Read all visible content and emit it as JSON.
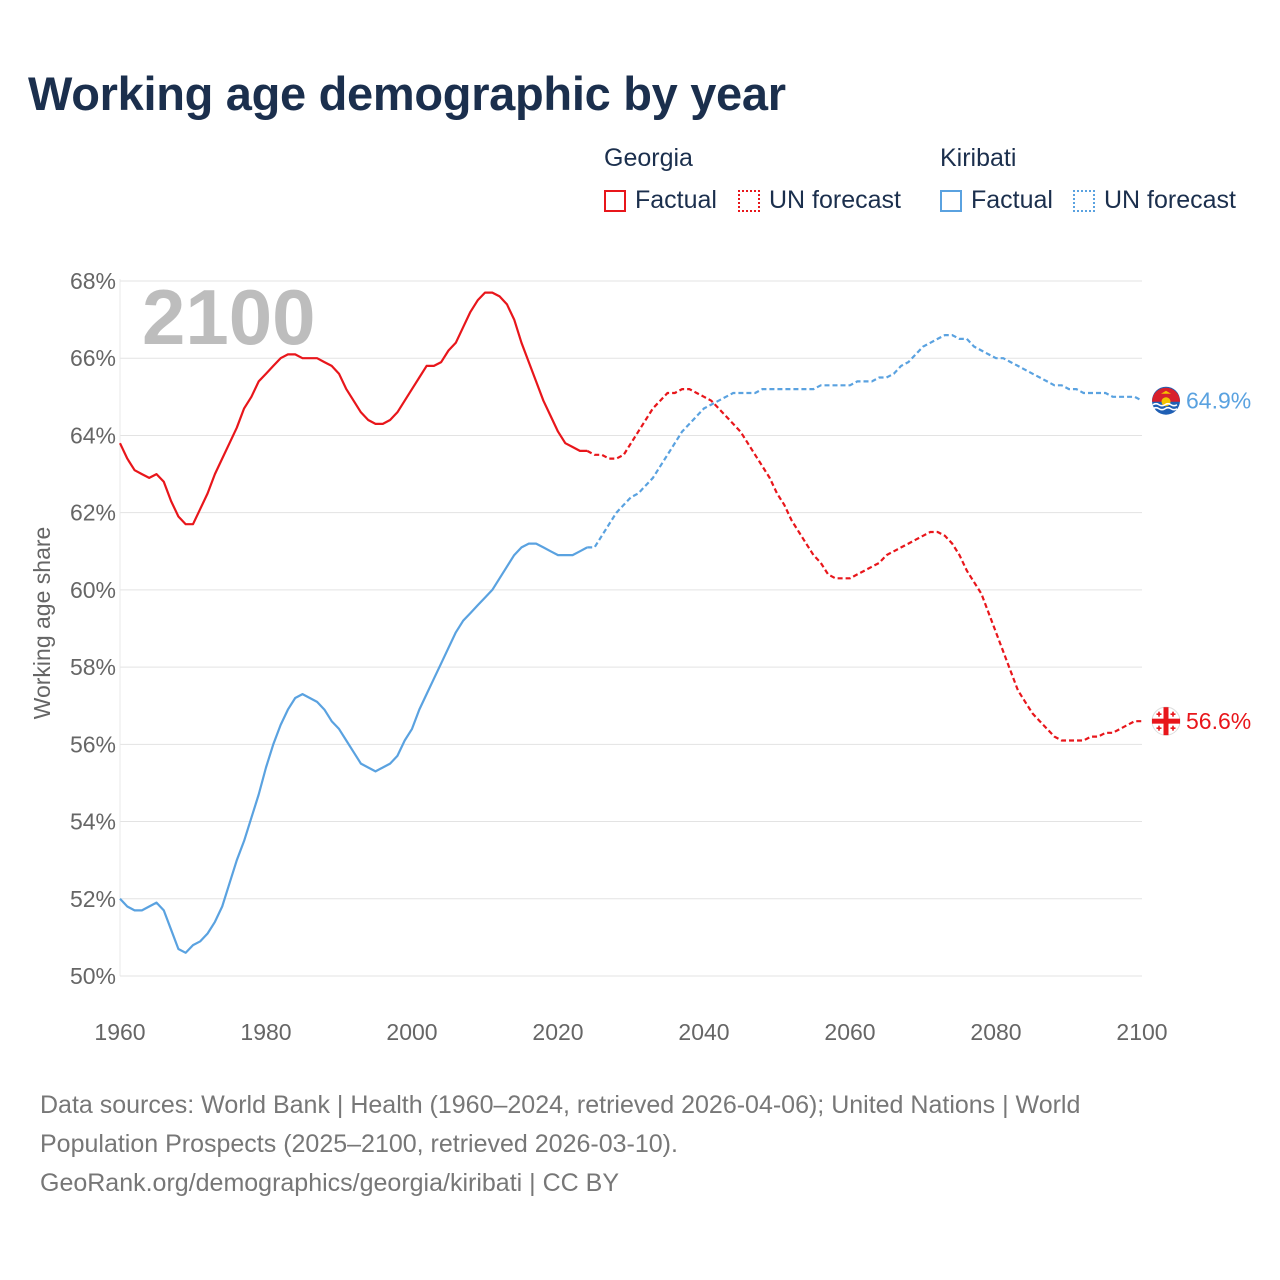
{
  "title": "Working age demographic by year",
  "legend": {
    "groups": [
      {
        "name": "Georgia",
        "color": "#e8161b",
        "factual": "Factual",
        "forecast": "UN forecast"
      },
      {
        "name": "Kiribati",
        "color": "#5aa2e0",
        "factual": "Factual",
        "forecast": "UN forecast"
      }
    ]
  },
  "footer": {
    "sources": "Data sources: World Bank | Health (1960–2024, retrieved 2026-04-06); United Nations | World Population Prospects (2025–2100, retrieved 2026-03-10).",
    "credit": "GeoRank.org/demographics/georgia/kiribati | CC BY"
  },
  "chart_data": {
    "type": "line",
    "title": "Working age demographic by year",
    "xlabel": "",
    "ylabel": "Working age share",
    "xlim": [
      1960,
      2100
    ],
    "ylim": [
      50,
      68
    ],
    "x_ticks": [
      1960,
      1980,
      2000,
      2020,
      2040,
      2060,
      2080,
      2100
    ],
    "y_ticks": [
      50,
      52,
      54,
      56,
      58,
      60,
      62,
      64,
      66,
      68
    ],
    "y_tick_labels": [
      "50%",
      "52%",
      "54%",
      "56%",
      "58%",
      "60%",
      "62%",
      "64%",
      "66%",
      "68%"
    ],
    "x_tick_labels": [
      "1960",
      "1980",
      "2000",
      "2020",
      "2040",
      "2060",
      "2080",
      "2100"
    ],
    "current_year": "2100",
    "factual_end_year": 2024,
    "series": [
      {
        "name": "Georgia",
        "color": "#e8161b",
        "end_label": "56.6%",
        "points": [
          [
            1960,
            63.8
          ],
          [
            1961,
            63.4
          ],
          [
            1962,
            63.1
          ],
          [
            1963,
            63.0
          ],
          [
            1964,
            62.9
          ],
          [
            1965,
            63.0
          ],
          [
            1966,
            62.8
          ],
          [
            1967,
            62.3
          ],
          [
            1968,
            61.9
          ],
          [
            1969,
            61.7
          ],
          [
            1970,
            61.7
          ],
          [
            1971,
            62.1
          ],
          [
            1972,
            62.5
          ],
          [
            1973,
            63.0
          ],
          [
            1974,
            63.4
          ],
          [
            1975,
            63.8
          ],
          [
            1976,
            64.2
          ],
          [
            1977,
            64.7
          ],
          [
            1978,
            65.0
          ],
          [
            1979,
            65.4
          ],
          [
            1980,
            65.6
          ],
          [
            1981,
            65.8
          ],
          [
            1982,
            66.0
          ],
          [
            1983,
            66.1
          ],
          [
            1984,
            66.1
          ],
          [
            1985,
            66.0
          ],
          [
            1986,
            66.0
          ],
          [
            1987,
            66.0
          ],
          [
            1988,
            65.9
          ],
          [
            1989,
            65.8
          ],
          [
            1990,
            65.6
          ],
          [
            1991,
            65.2
          ],
          [
            1992,
            64.9
          ],
          [
            1993,
            64.6
          ],
          [
            1994,
            64.4
          ],
          [
            1995,
            64.3
          ],
          [
            1996,
            64.3
          ],
          [
            1997,
            64.4
          ],
          [
            1998,
            64.6
          ],
          [
            1999,
            64.9
          ],
          [
            2000,
            65.2
          ],
          [
            2001,
            65.5
          ],
          [
            2002,
            65.8
          ],
          [
            2003,
            65.8
          ],
          [
            2004,
            65.9
          ],
          [
            2005,
            66.2
          ],
          [
            2006,
            66.4
          ],
          [
            2007,
            66.8
          ],
          [
            2008,
            67.2
          ],
          [
            2009,
            67.5
          ],
          [
            2010,
            67.7
          ],
          [
            2011,
            67.7
          ],
          [
            2012,
            67.6
          ],
          [
            2013,
            67.4
          ],
          [
            2014,
            67.0
          ],
          [
            2015,
            66.4
          ],
          [
            2016,
            65.9
          ],
          [
            2017,
            65.4
          ],
          [
            2018,
            64.9
          ],
          [
            2019,
            64.5
          ],
          [
            2020,
            64.1
          ],
          [
            2021,
            63.8
          ],
          [
            2022,
            63.7
          ],
          [
            2023,
            63.6
          ],
          [
            2024,
            63.6
          ],
          [
            2025,
            63.5
          ],
          [
            2026,
            63.5
          ],
          [
            2027,
            63.4
          ],
          [
            2028,
            63.4
          ],
          [
            2029,
            63.5
          ],
          [
            2030,
            63.8
          ],
          [
            2031,
            64.1
          ],
          [
            2032,
            64.4
          ],
          [
            2033,
            64.7
          ],
          [
            2034,
            64.9
          ],
          [
            2035,
            65.1
          ],
          [
            2036,
            65.1
          ],
          [
            2037,
            65.2
          ],
          [
            2038,
            65.2
          ],
          [
            2039,
            65.1
          ],
          [
            2040,
            65.0
          ],
          [
            2041,
            64.9
          ],
          [
            2042,
            64.7
          ],
          [
            2043,
            64.5
          ],
          [
            2044,
            64.3
          ],
          [
            2045,
            64.1
          ],
          [
            2046,
            63.8
          ],
          [
            2047,
            63.5
          ],
          [
            2048,
            63.2
          ],
          [
            2049,
            62.9
          ],
          [
            2050,
            62.5
          ],
          [
            2051,
            62.2
          ],
          [
            2052,
            61.8
          ],
          [
            2053,
            61.5
          ],
          [
            2054,
            61.2
          ],
          [
            2055,
            60.9
          ],
          [
            2056,
            60.7
          ],
          [
            2057,
            60.4
          ],
          [
            2058,
            60.3
          ],
          [
            2059,
            60.3
          ],
          [
            2060,
            60.3
          ],
          [
            2061,
            60.4
          ],
          [
            2062,
            60.5
          ],
          [
            2063,
            60.6
          ],
          [
            2064,
            60.7
          ],
          [
            2065,
            60.9
          ],
          [
            2066,
            61.0
          ],
          [
            2067,
            61.1
          ],
          [
            2068,
            61.2
          ],
          [
            2069,
            61.3
          ],
          [
            2070,
            61.4
          ],
          [
            2071,
            61.5
          ],
          [
            2072,
            61.5
          ],
          [
            2073,
            61.4
          ],
          [
            2074,
            61.2
          ],
          [
            2075,
            60.9
          ],
          [
            2076,
            60.5
          ],
          [
            2077,
            60.2
          ],
          [
            2078,
            59.9
          ],
          [
            2079,
            59.4
          ],
          [
            2080,
            58.9
          ],
          [
            2081,
            58.4
          ],
          [
            2082,
            57.9
          ],
          [
            2083,
            57.4
          ],
          [
            2084,
            57.1
          ],
          [
            2085,
            56.8
          ],
          [
            2086,
            56.6
          ],
          [
            2087,
            56.4
          ],
          [
            2088,
            56.2
          ],
          [
            2089,
            56.1
          ],
          [
            2090,
            56.1
          ],
          [
            2091,
            56.1
          ],
          [
            2092,
            56.1
          ],
          [
            2093,
            56.2
          ],
          [
            2094,
            56.2
          ],
          [
            2095,
            56.3
          ],
          [
            2096,
            56.3
          ],
          [
            2097,
            56.4
          ],
          [
            2098,
            56.5
          ],
          [
            2099,
            56.6
          ],
          [
            2100,
            56.6
          ]
        ]
      },
      {
        "name": "Kiribati",
        "color": "#5aa2e0",
        "end_label": "64.9%",
        "points": [
          [
            1960,
            52.0
          ],
          [
            1961,
            51.8
          ],
          [
            1962,
            51.7
          ],
          [
            1963,
            51.7
          ],
          [
            1964,
            51.8
          ],
          [
            1965,
            51.9
          ],
          [
            1966,
            51.7
          ],
          [
            1967,
            51.2
          ],
          [
            1968,
            50.7
          ],
          [
            1969,
            50.6
          ],
          [
            1970,
            50.8
          ],
          [
            1971,
            50.9
          ],
          [
            1972,
            51.1
          ],
          [
            1973,
            51.4
          ],
          [
            1974,
            51.8
          ],
          [
            1975,
            52.4
          ],
          [
            1976,
            53.0
          ],
          [
            1977,
            53.5
          ],
          [
            1978,
            54.1
          ],
          [
            1979,
            54.7
          ],
          [
            1980,
            55.4
          ],
          [
            1981,
            56.0
          ],
          [
            1982,
            56.5
          ],
          [
            1983,
            56.9
          ],
          [
            1984,
            57.2
          ],
          [
            1985,
            57.3
          ],
          [
            1986,
            57.2
          ],
          [
            1987,
            57.1
          ],
          [
            1988,
            56.9
          ],
          [
            1989,
            56.6
          ],
          [
            1990,
            56.4
          ],
          [
            1991,
            56.1
          ],
          [
            1992,
            55.8
          ],
          [
            1993,
            55.5
          ],
          [
            1994,
            55.4
          ],
          [
            1995,
            55.3
          ],
          [
            1996,
            55.4
          ],
          [
            1997,
            55.5
          ],
          [
            1998,
            55.7
          ],
          [
            1999,
            56.1
          ],
          [
            2000,
            56.4
          ],
          [
            2001,
            56.9
          ],
          [
            2002,
            57.3
          ],
          [
            2003,
            57.7
          ],
          [
            2004,
            58.1
          ],
          [
            2005,
            58.5
          ],
          [
            2006,
            58.9
          ],
          [
            2007,
            59.2
          ],
          [
            2008,
            59.4
          ],
          [
            2009,
            59.6
          ],
          [
            2010,
            59.8
          ],
          [
            2011,
            60.0
          ],
          [
            2012,
            60.3
          ],
          [
            2013,
            60.6
          ],
          [
            2014,
            60.9
          ],
          [
            2015,
            61.1
          ],
          [
            2016,
            61.2
          ],
          [
            2017,
            61.2
          ],
          [
            2018,
            61.1
          ],
          [
            2019,
            61.0
          ],
          [
            2020,
            60.9
          ],
          [
            2021,
            60.9
          ],
          [
            2022,
            60.9
          ],
          [
            2023,
            61.0
          ],
          [
            2024,
            61.1
          ],
          [
            2025,
            61.1
          ],
          [
            2026,
            61.4
          ],
          [
            2027,
            61.7
          ],
          [
            2028,
            62.0
          ],
          [
            2029,
            62.2
          ],
          [
            2030,
            62.4
          ],
          [
            2031,
            62.5
          ],
          [
            2032,
            62.7
          ],
          [
            2033,
            62.9
          ],
          [
            2034,
            63.2
          ],
          [
            2035,
            63.5
          ],
          [
            2036,
            63.8
          ],
          [
            2037,
            64.1
          ],
          [
            2038,
            64.3
          ],
          [
            2039,
            64.5
          ],
          [
            2040,
            64.7
          ],
          [
            2041,
            64.8
          ],
          [
            2042,
            64.9
          ],
          [
            2043,
            65.0
          ],
          [
            2044,
            65.1
          ],
          [
            2045,
            65.1
          ],
          [
            2046,
            65.1
          ],
          [
            2047,
            65.1
          ],
          [
            2048,
            65.2
          ],
          [
            2049,
            65.2
          ],
          [
            2050,
            65.2
          ],
          [
            2051,
            65.2
          ],
          [
            2052,
            65.2
          ],
          [
            2053,
            65.2
          ],
          [
            2054,
            65.2
          ],
          [
            2055,
            65.2
          ],
          [
            2056,
            65.3
          ],
          [
            2057,
            65.3
          ],
          [
            2058,
            65.3
          ],
          [
            2059,
            65.3
          ],
          [
            2060,
            65.3
          ],
          [
            2061,
            65.4
          ],
          [
            2062,
            65.4
          ],
          [
            2063,
            65.4
          ],
          [
            2064,
            65.5
          ],
          [
            2065,
            65.5
          ],
          [
            2066,
            65.6
          ],
          [
            2067,
            65.8
          ],
          [
            2068,
            65.9
          ],
          [
            2069,
            66.1
          ],
          [
            2070,
            66.3
          ],
          [
            2071,
            66.4
          ],
          [
            2072,
            66.5
          ],
          [
            2073,
            66.6
          ],
          [
            2074,
            66.6
          ],
          [
            2075,
            66.5
          ],
          [
            2076,
            66.5
          ],
          [
            2077,
            66.3
          ],
          [
            2078,
            66.2
          ],
          [
            2079,
            66.1
          ],
          [
            2080,
            66.0
          ],
          [
            2081,
            66.0
          ],
          [
            2082,
            65.9
          ],
          [
            2083,
            65.8
          ],
          [
            2084,
            65.7
          ],
          [
            2085,
            65.6
          ],
          [
            2086,
            65.5
          ],
          [
            2087,
            65.4
          ],
          [
            2088,
            65.3
          ],
          [
            2089,
            65.3
          ],
          [
            2090,
            65.2
          ],
          [
            2091,
            65.2
          ],
          [
            2092,
            65.1
          ],
          [
            2093,
            65.1
          ],
          [
            2094,
            65.1
          ],
          [
            2095,
            65.1
          ],
          [
            2096,
            65.0
          ],
          [
            2097,
            65.0
          ],
          [
            2098,
            65.0
          ],
          [
            2099,
            65.0
          ],
          [
            2100,
            64.9
          ]
        ]
      }
    ]
  }
}
